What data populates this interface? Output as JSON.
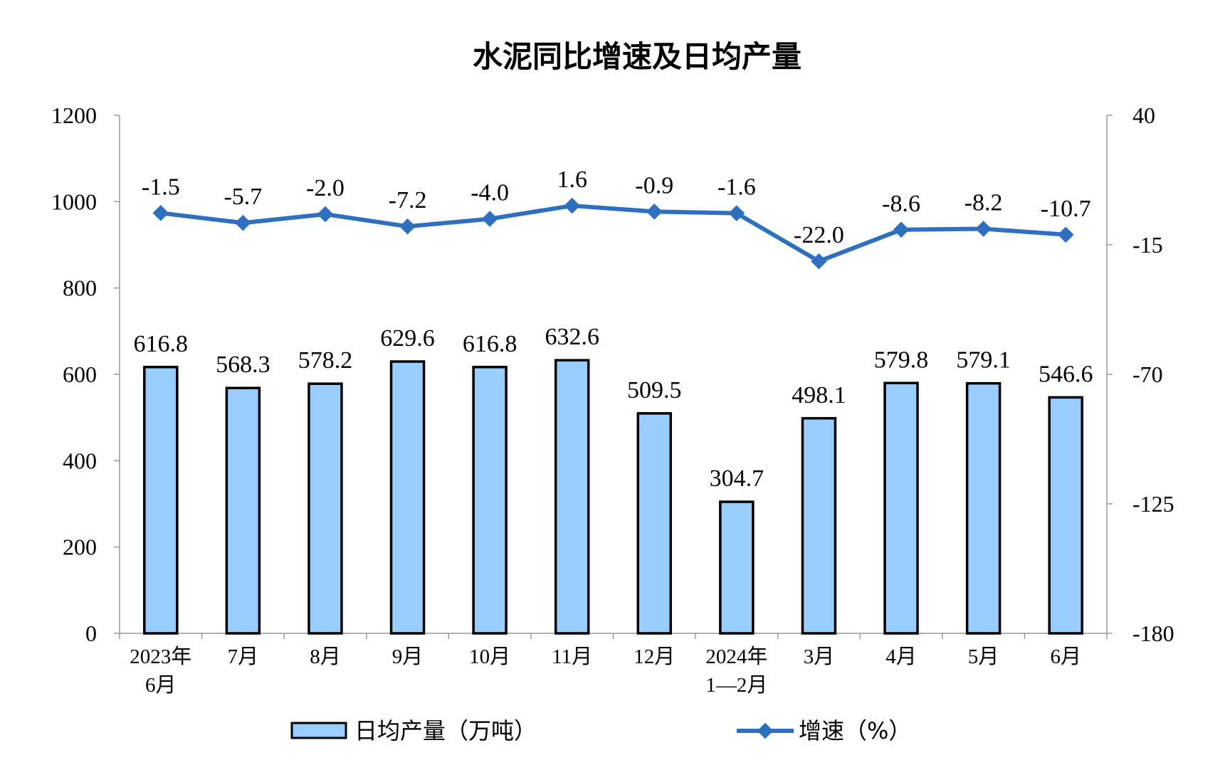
{
  "chart_data": {
    "type": "bar+line",
    "title": "水泥同比增速及日均产量",
    "categories": [
      [
        "2023年",
        "6月"
      ],
      [
        "7月"
      ],
      [
        "8月"
      ],
      [
        "9月"
      ],
      [
        "10月"
      ],
      [
        "11月"
      ],
      [
        "12月"
      ],
      [
        "2024年",
        "1—2月"
      ],
      [
        "3月"
      ],
      [
        "4月"
      ],
      [
        "5月"
      ],
      [
        "6月"
      ]
    ],
    "series": [
      {
        "name": "日均产量（万吨）",
        "type": "bar",
        "axis": "left",
        "values": [
          616.8,
          568.3,
          578.2,
          629.6,
          616.8,
          632.6,
          509.5,
          304.7,
          498.1,
          579.8,
          579.1,
          546.6
        ],
        "labels": [
          "616.8",
          "568.3",
          "578.2",
          "629.6",
          "616.8",
          "632.6",
          "509.5",
          "304.7",
          "498.1",
          "579.8",
          "579.1",
          "546.6"
        ]
      },
      {
        "name": "增速（%）",
        "type": "line",
        "axis": "right",
        "values": [
          -1.5,
          -5.7,
          -2.0,
          -7.2,
          -4.0,
          1.6,
          -0.9,
          -1.6,
          -22.0,
          -8.6,
          -8.2,
          -10.7
        ],
        "labels": [
          "-1.5",
          "-5.7",
          "-2.0",
          "-7.2",
          "-4.0",
          "1.6",
          "-0.9",
          "-1.6",
          "-22.0",
          "-8.6",
          "-8.2",
          "-10.7"
        ]
      }
    ],
    "y_left": {
      "min": 0,
      "max": 1200,
      "ticks": [
        0,
        200,
        400,
        600,
        800,
        1000,
        1200
      ]
    },
    "y_right": {
      "min": -180,
      "max": 40,
      "ticks": [
        40,
        -15,
        -70,
        -125,
        -180
      ]
    },
    "grid": false,
    "legend": "bottom",
    "colors": {
      "bar_fill": "#99ccff",
      "bar_stroke": "#000000",
      "line": "#2e6fc0"
    }
  }
}
